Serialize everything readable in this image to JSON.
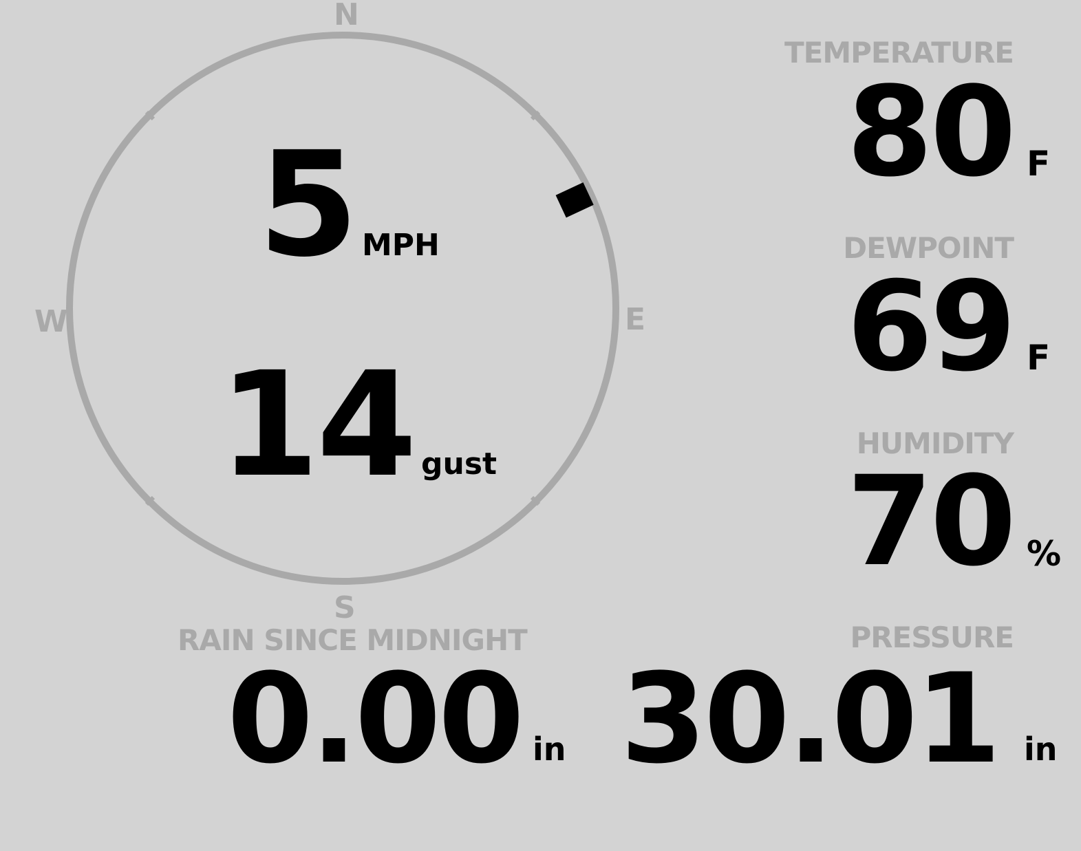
{
  "wind": {
    "compass": {
      "n": "N",
      "e": "E",
      "s": "S",
      "w": "W"
    },
    "direction_degrees": 65,
    "speed": "5",
    "speed_unit": "MPH",
    "gust": "14",
    "gust_unit": "gust"
  },
  "temperature": {
    "label": "TEMPERATURE",
    "value": "80",
    "unit": "F"
  },
  "dewpoint": {
    "label": "DEWPOINT",
    "value": "69",
    "unit": "F"
  },
  "humidity": {
    "label": "HUMIDITY",
    "value": "70",
    "unit": "%"
  },
  "rain": {
    "label": "RAIN SINCE MIDNIGHT",
    "value": "0.00",
    "unit": "in"
  },
  "pressure": {
    "label": "PRESSURE",
    "value": "30.01",
    "unit": "in"
  },
  "colors": {
    "background": "#d3d3d3",
    "muted": "#a9a9a9",
    "text": "#000000"
  }
}
